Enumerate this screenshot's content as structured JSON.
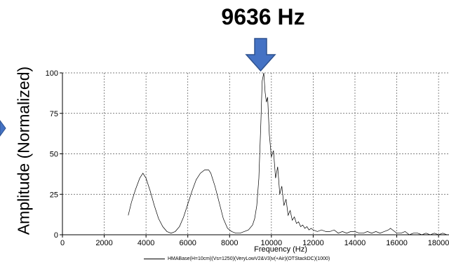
{
  "annotation": {
    "peak_label": "9636 Hz"
  },
  "chart_data": {
    "type": "line",
    "title": "",
    "xlabel": "Frequency (Hz)",
    "ylabel": "Amplitude (Normalized)",
    "xlim": [
      0,
      18500
    ],
    "ylim": [
      0,
      100
    ],
    "x_ticks": [
      0,
      2000,
      4000,
      6000,
      8000,
      10000,
      12000,
      14000,
      16000,
      18000
    ],
    "y_ticks": [
      0,
      25,
      50,
      75,
      100
    ],
    "grid": true,
    "legend_position": "bottom",
    "series": [
      {
        "name": "HMABase(H=10cm)(Vs=1250)(VeryLowV2&V3)v(+Air)(OTStackDC)(1000)",
        "color": "#000000",
        "x": [
          3150,
          3300,
          3500,
          3700,
          3850,
          4000,
          4200,
          4400,
          4600,
          4800,
          5000,
          5200,
          5400,
          5600,
          5800,
          6000,
          6200,
          6400,
          6600,
          6800,
          7000,
          7100,
          7300,
          7500,
          7700,
          7900,
          8100,
          8300,
          8500,
          8700,
          8900,
          9100,
          9200,
          9300,
          9400,
          9500,
          9560,
          9636,
          9700,
          9760,
          9820,
          9900,
          10000,
          10100,
          10200,
          10300,
          10400,
          10500,
          10600,
          10700,
          10800,
          10900,
          11000,
          11100,
          11200,
          11300,
          11400,
          11500,
          11600,
          11700,
          11800,
          11900,
          12000,
          12200,
          12400,
          12600,
          12800,
          13000,
          13200,
          13400,
          13600,
          13800,
          14000,
          14200,
          14400,
          14600,
          14800,
          15000,
          15200,
          15400,
          15600,
          15700,
          15800,
          16000,
          16200,
          16400,
          16600,
          16800,
          17000,
          17200,
          17400,
          17600,
          17800,
          18000,
          18200,
          18400
        ],
        "y": [
          12,
          20,
          28,
          35,
          38,
          35,
          27,
          18,
          10,
          5,
          2,
          1,
          2,
          5,
          11,
          19,
          27,
          34,
          38,
          40,
          40,
          38,
          30,
          20,
          10,
          4,
          2,
          1,
          1,
          2,
          3,
          6,
          10,
          18,
          35,
          70,
          95,
          100,
          88,
          82,
          85,
          62,
          48,
          52,
          35,
          42,
          25,
          30,
          18,
          22,
          12,
          15,
          9,
          11,
          7,
          8,
          5,
          6,
          4,
          5,
          3,
          4,
          3,
          2,
          3,
          2,
          2,
          3,
          1,
          2,
          1,
          2,
          2,
          1,
          1,
          2,
          1,
          2,
          1,
          2,
          3,
          4,
          3,
          1,
          1,
          2,
          0,
          1,
          1,
          0,
          1,
          0,
          1,
          0,
          1,
          0
        ]
      }
    ]
  }
}
